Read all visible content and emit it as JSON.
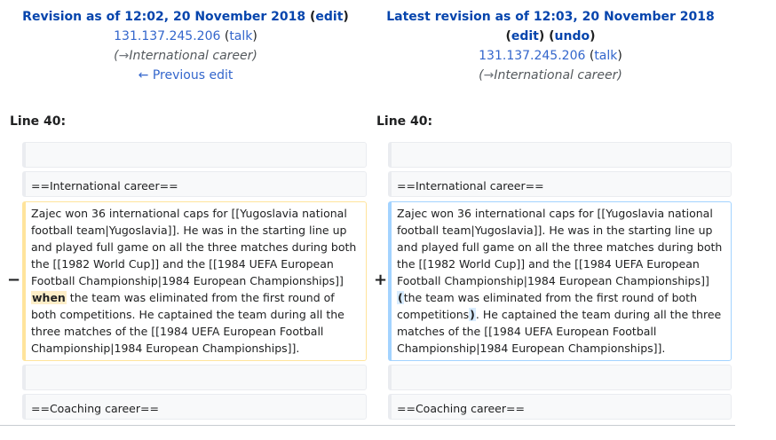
{
  "left": {
    "title_prefix": "Revision as of 12:02, 20 November 2018",
    "edit_link": "edit",
    "user": "131.137.245.206",
    "talk_link": "talk",
    "comment_arrow": "→",
    "comment_section": "International career",
    "prev_link": "← Previous edit",
    "line_label": "Line 40:"
  },
  "right": {
    "title_prefix": "Latest revision as of 12:03, 20 November 2018",
    "edit_link": "edit",
    "undo_link": "undo",
    "user": "131.137.245.206",
    "talk_link": "talk",
    "comment_arrow": "→",
    "comment_section": "International career",
    "line_label": "Line 40:"
  },
  "diff": {
    "heading_international": "==International career==",
    "heading_coaching": "==Coaching career==",
    "del_marker": "−",
    "add_marker": "+",
    "left_pre": "Zajec won 36 international caps for [[Yugoslavia national football team|Yugoslavia]]. He was in the starting line up and played full game on all the three matches during both the [[1982 World Cup]] and the [[1984 UEFA European Football Championship|1984 European Championships]] ",
    "left_hl": "when",
    "left_post": " the team was eliminated from the first round of both competitions. He captained the team during all the three matches of the [[1984 UEFA European Football Championship|1984 European Championships]].",
    "right_pre": "Zajec won 36 international caps for [[Yugoslavia national football team|Yugoslavia]]. He was in the starting line up and played full game on all the three matches during both the [[1982 World Cup]] and the [[1984 UEFA European Football Championship|1984 European Championships]] ",
    "right_hl1": "(",
    "right_mid": "the team was eliminated from the first round of both competitions",
    "right_hl2": ")",
    "right_post": ". He captained the team during all the three matches of the [[1984 UEFA European Football Championship|1984 European Championships]]."
  }
}
